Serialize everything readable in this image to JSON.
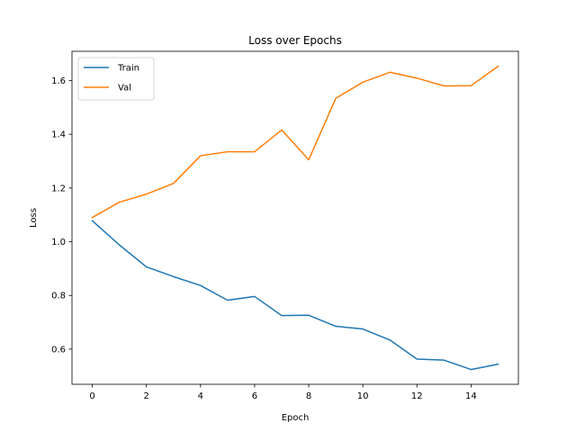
{
  "chart_data": {
    "type": "line",
    "title": "Loss over Epochs",
    "xlabel": "Epoch",
    "ylabel": "Loss",
    "xlim": [
      -0.75,
      15.75
    ],
    "ylim": [
      0.469,
      1.709
    ],
    "xticks": [
      0,
      2,
      4,
      6,
      8,
      10,
      12,
      14
    ],
    "yticks": [
      0.6,
      0.8,
      1.0,
      1.2,
      1.4,
      1.6
    ],
    "grid": false,
    "legend_position": "upper-left",
    "x": [
      0,
      1,
      2,
      3,
      4,
      5,
      6,
      7,
      8,
      9,
      10,
      11,
      12,
      13,
      14,
      15
    ],
    "series": [
      {
        "name": "Train",
        "color": "#1f77b4",
        "values": [
          1.078,
          0.988,
          0.906,
          0.87,
          0.837,
          0.782,
          0.796,
          0.725,
          0.726,
          0.685,
          0.675,
          0.634,
          0.563,
          0.559,
          0.524,
          0.544
        ]
      },
      {
        "name": "Val",
        "color": "#ff7f0e",
        "values": [
          1.09,
          1.147,
          1.177,
          1.217,
          1.32,
          1.335,
          1.335,
          1.416,
          1.305,
          1.534,
          1.594,
          1.631,
          1.609,
          1.58,
          1.581,
          1.653
        ]
      }
    ]
  }
}
